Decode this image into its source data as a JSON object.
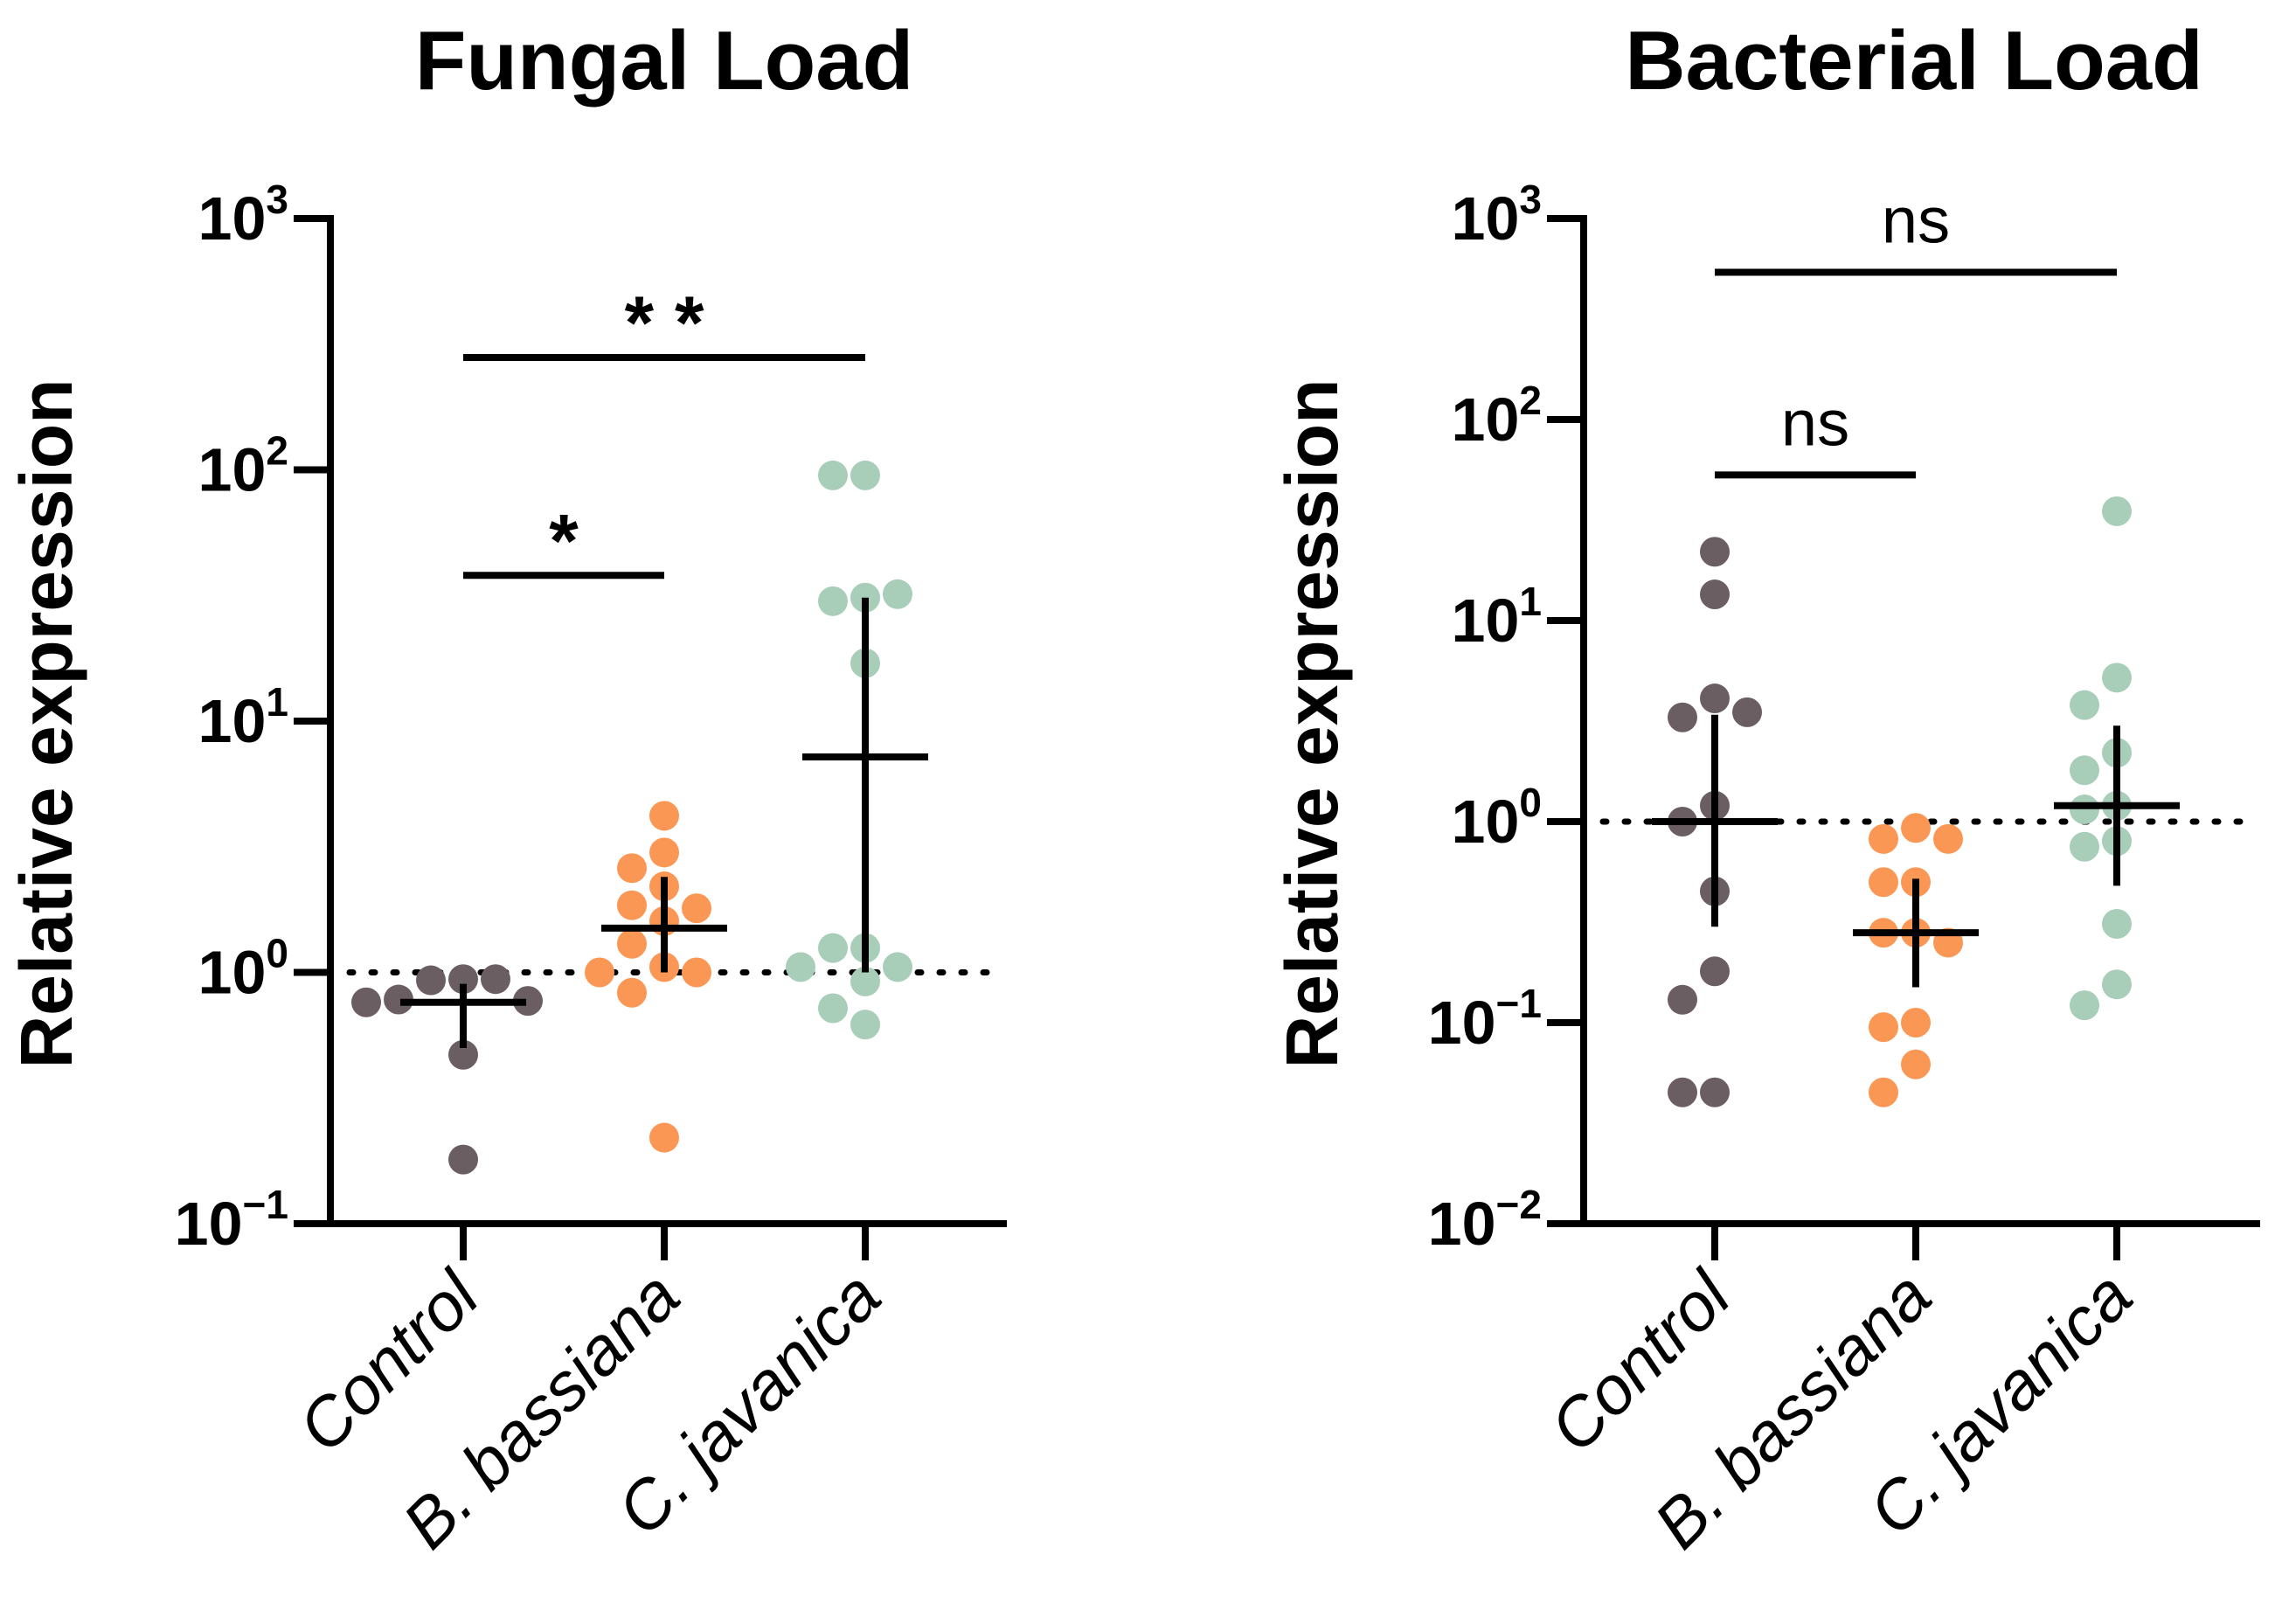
{
  "colors": {
    "Control": "#6b5e63",
    "B. bassiana": "#fb9754",
    "C. javanica": "#a8cdb9",
    "axis": "#000000"
  },
  "chart_data": [
    {
      "type": "scatter",
      "title": "Fungal Load",
      "ylabel": "Relative expression",
      "xlabel": "",
      "yscale": "log",
      "ylim": [
        0.1,
        1000
      ],
      "yticks": [
        {
          "base": "10",
          "exp": "3",
          "value": 1000
        },
        {
          "base": "10",
          "exp": "2",
          "value": 100
        },
        {
          "base": "10",
          "exp": "1",
          "value": 10
        },
        {
          "base": "10",
          "exp": "0",
          "value": 1
        },
        {
          "base": "10",
          "exp": "−1",
          "value": 0.1
        }
      ],
      "reference_line": 1,
      "categories": [
        "Control",
        "B. bassiana",
        "C. javanica"
      ],
      "series": [
        {
          "name": "Control",
          "values": [
            0.94,
            0.93,
            0.94,
            0.78,
            0.77,
            0.76,
            0.47,
            0.18
          ],
          "mean": 0.76,
          "error": [
            0.5,
            0.9
          ]
        },
        {
          "name": "B. bassiana",
          "values": [
            4.2,
            3.0,
            2.6,
            2.2,
            1.85,
            1.8,
            1.6,
            1.3,
            1.05,
            1.0,
            1.0,
            0.83,
            0.22
          ],
          "mean": 1.5,
          "error": [
            1.0,
            2.4
          ]
        },
        {
          "name": "C. javanica",
          "values": [
            95,
            95,
            31,
            30,
            32,
            17,
            1.25,
            1.25,
            1.05,
            1.05,
            0.92,
            0.72,
            0.62
          ],
          "mean": 7.2,
          "error": [
            1.0,
            31
          ]
        }
      ],
      "significance": [
        {
          "from": "Control",
          "to": "B. bassiana",
          "label": "*",
          "y": 38
        },
        {
          "from": "Control",
          "to": "C. javanica",
          "label": "* *",
          "y": 280
        }
      ]
    },
    {
      "type": "scatter",
      "title": "Bacterial Load",
      "ylabel": "Relative expression",
      "xlabel": "",
      "yscale": "log",
      "ylim": [
        0.01,
        1000
      ],
      "yticks": [
        {
          "base": "10",
          "exp": "3",
          "value": 1000
        },
        {
          "base": "10",
          "exp": "2",
          "value": 100
        },
        {
          "base": "10",
          "exp": "1",
          "value": 10
        },
        {
          "base": "10",
          "exp": "0",
          "value": 1
        },
        {
          "base": "10",
          "exp": "−1",
          "value": 0.1
        },
        {
          "base": "10",
          "exp": "−2",
          "value": 0.01
        }
      ],
      "reference_line": 1,
      "categories": [
        "Control",
        "B. bassiana",
        "C. javanica"
      ],
      "series": [
        {
          "name": "Control",
          "values": [
            22,
            13.5,
            4.1,
            3.3,
            3.5,
            1.2,
            1.0,
            0.45,
            0.18,
            0.13,
            0.045,
            0.045
          ],
          "mean": 1.0,
          "error": [
            0.3,
            3.4
          ]
        },
        {
          "name": "B. bassiana",
          "values": [
            0.93,
            0.82,
            0.82,
            0.5,
            0.5,
            0.28,
            0.28,
            0.25,
            0.1,
            0.095,
            0.062,
            0.045
          ],
          "mean": 0.28,
          "error": [
            0.15,
            0.52
          ]
        },
        {
          "name": "C. javanica",
          "values": [
            35,
            5.2,
            3.8,
            2.2,
            1.8,
            1.2,
            1.15,
            0.8,
            0.75,
            0.31,
            0.155,
            0.122
          ],
          "mean": 1.2,
          "error": [
            0.48,
            3.0
          ]
        }
      ],
      "significance": [
        {
          "from": "Control",
          "to": "B. bassiana",
          "label": "ns",
          "y": 53
        },
        {
          "from": "Control",
          "to": "C. javanica",
          "label": "ns",
          "y": 540
        }
      ]
    }
  ]
}
